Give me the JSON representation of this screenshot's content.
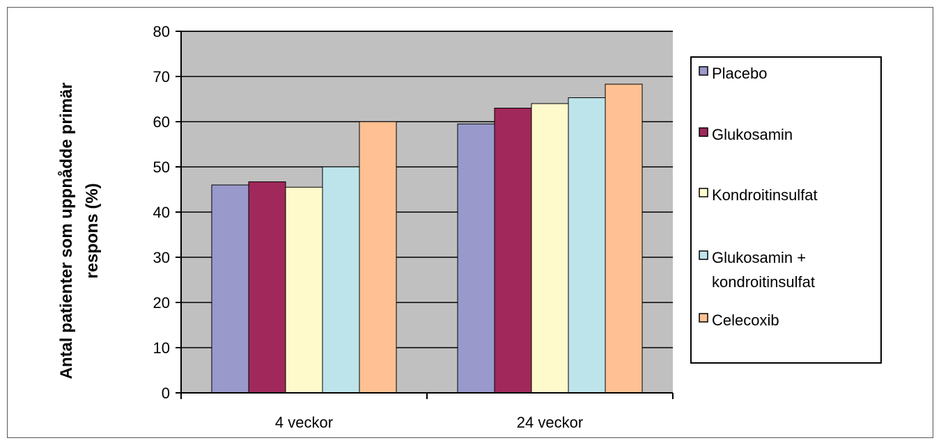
{
  "chart_data": {
    "type": "bar",
    "categories": [
      "4 veckor",
      "24 veckor"
    ],
    "series": [
      {
        "name": "Placebo",
        "values": [
          46,
          59.5
        ]
      },
      {
        "name": "Glukosamin",
        "values": [
          46.7,
          63
        ]
      },
      {
        "name": "Kondroitinsulfat",
        "values": [
          45.5,
          64
        ]
      },
      {
        "name": "Glukosamin + kondroitinsulfat",
        "values": [
          50,
          65.3
        ]
      },
      {
        "name": "Celecoxib",
        "values": [
          60,
          68.3
        ]
      }
    ],
    "legend_lines": [
      [
        "Placebo"
      ],
      [
        "Glukosamin"
      ],
      [
        "Kondroitinsulfat"
      ],
      [
        "Glukosamin +",
        "kondroitinsulfat"
      ],
      [
        "Celecoxib"
      ]
    ],
    "colors": [
      "#9999cc",
      "#a0285a",
      "#fffacc",
      "#bde4ea",
      "#ffc193"
    ],
    "plot_background": "#c0c0c0",
    "ylabel_lines": [
      "Antal patienter som uppnådde primär",
      "respons (%)"
    ],
    "xlabel": "",
    "title": "",
    "ylim": [
      0,
      80
    ],
    "yticks": [
      0,
      10,
      20,
      30,
      40,
      50,
      60,
      70,
      80
    ],
    "grid": true,
    "legend_position": "right"
  }
}
